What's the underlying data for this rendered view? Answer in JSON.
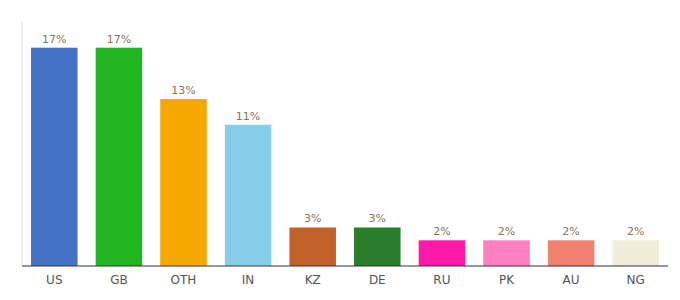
{
  "chart_data": {
    "type": "bar",
    "categories": [
      "US",
      "GB",
      "OTH",
      "IN",
      "KZ",
      "DE",
      "RU",
      "PK",
      "AU",
      "NG"
    ],
    "values": [
      17,
      17,
      13,
      11,
      3,
      3,
      2,
      2,
      2,
      2
    ],
    "value_labels": [
      "17%",
      "17%",
      "13%",
      "11%",
      "3%",
      "3%",
      "2%",
      "2%",
      "2%",
      "2%"
    ],
    "colors": [
      "#4472c4",
      "#21b521",
      "#f5a800",
      "#87ceeb",
      "#c0622a",
      "#2a7d2a",
      "#ff1aaa",
      "#ff80c0",
      "#f08070",
      "#f0eed8"
    ],
    "ylim": [
      0,
      19
    ],
    "data_labels": true,
    "tick_labels": "x",
    "grid": false
  }
}
